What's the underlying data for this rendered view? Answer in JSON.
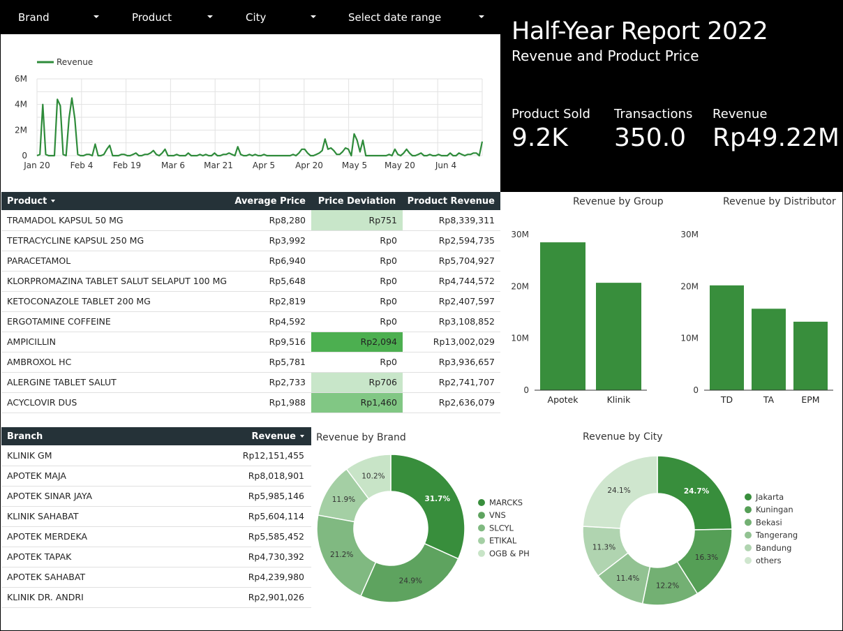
{
  "filters": [
    {
      "label": "Brand"
    },
    {
      "label": "Product"
    },
    {
      "label": "City"
    },
    {
      "label": "Select date range"
    }
  ],
  "header": {
    "title": "Half-Year Report 2022",
    "subtitle": "Revenue and Product Price",
    "kpis": [
      {
        "label": "Product Sold",
        "value": "9.2K"
      },
      {
        "label": "Transactions",
        "value": "350.0"
      },
      {
        "label": "Revenue",
        "value": "Rp49.22M"
      }
    ]
  },
  "colors": {
    "header_bg": "#000000",
    "table_header_bg": "#253238",
    "green_dark": "#388e3c",
    "green_line": "#2e8b3a",
    "heat_high": "#4caf50",
    "heat_mid": "#81c784",
    "heat_low": "#c8e6c9"
  },
  "product_table": {
    "columns": [
      "Product",
      "Average Price",
      "Price Deviation",
      "Product Revenue"
    ],
    "rows": [
      {
        "product": "TRAMADOL KAPSUL 50 MG",
        "avg_price": "Rp8,280",
        "deviation": "Rp751",
        "dev_value": 751,
        "revenue": "Rp8,339,311"
      },
      {
        "product": "TETRACYCLINE KAPSUL 250 MG",
        "avg_price": "Rp3,992",
        "deviation": "Rp0",
        "dev_value": 0,
        "revenue": "Rp2,594,735"
      },
      {
        "product": "PARACETAMOL",
        "avg_price": "Rp6,940",
        "deviation": "Rp0",
        "dev_value": 0,
        "revenue": "Rp5,704,927"
      },
      {
        "product": "KLORPROMAZINA TABLET SALUT SELAPUT 100 MG",
        "avg_price": "Rp5,648",
        "deviation": "Rp0",
        "dev_value": 0,
        "revenue": "Rp4,744,572"
      },
      {
        "product": "KETOCONAZOLE TABLET 200 MG",
        "avg_price": "Rp2,819",
        "deviation": "Rp0",
        "dev_value": 0,
        "revenue": "Rp2,407,597"
      },
      {
        "product": "ERGOTAMINE COFFEINE",
        "avg_price": "Rp4,592",
        "deviation": "Rp0",
        "dev_value": 0,
        "revenue": "Rp3,108,852"
      },
      {
        "product": "AMPICILLIN",
        "avg_price": "Rp9,516",
        "deviation": "Rp2,094",
        "dev_value": 2094,
        "revenue": "Rp13,002,029"
      },
      {
        "product": "AMBROXOL HC",
        "avg_price": "Rp5,781",
        "deviation": "Rp0",
        "dev_value": 0,
        "revenue": "Rp3,936,657"
      },
      {
        "product": "ALERGINE TABLET SALUT",
        "avg_price": "Rp2,733",
        "deviation": "Rp706",
        "dev_value": 706,
        "revenue": "Rp2,741,707"
      },
      {
        "product": "ACYCLOVIR DUS",
        "avg_price": "Rp1,988",
        "deviation": "Rp1,460",
        "dev_value": 1460,
        "revenue": "Rp2,636,079"
      }
    ]
  },
  "branch_table": {
    "columns": [
      "Branch",
      "Revenue"
    ],
    "rows": [
      {
        "branch": "KLINIK GM",
        "revenue": "Rp12,151,455"
      },
      {
        "branch": "APOTEK MAJA",
        "revenue": "Rp8,018,901"
      },
      {
        "branch": "APOTEK SINAR JAYA",
        "revenue": "Rp5,985,146"
      },
      {
        "branch": "KLINIK SAHABAT",
        "revenue": "Rp5,604,114"
      },
      {
        "branch": "APOTEK MERDEKA",
        "revenue": "Rp5,585,452"
      },
      {
        "branch": "APOTEK TAPAK",
        "revenue": "Rp4,730,392"
      },
      {
        "branch": "APOTEK SAHABAT",
        "revenue": "Rp4,239,980"
      },
      {
        "branch": "KLINIK DR. ANDRI",
        "revenue": "Rp2,901,026"
      }
    ]
  },
  "chart_data": [
    {
      "id": "revenue_timeseries",
      "type": "line",
      "title": "",
      "legend": {
        "entries": [
          "Revenue"
        ],
        "placement": "top-left"
      },
      "x_tick_labels": [
        "Jan 20",
        "Feb 4",
        "Feb 19",
        "Mar 6",
        "Mar 21",
        "Apr 5",
        "Apr 20",
        "May 5",
        "May 20",
        "Jun 4"
      ],
      "y_tick_labels": [
        "0",
        "2M",
        "4M",
        "6M"
      ],
      "ylim": [
        0,
        6000000
      ],
      "grid": true,
      "series": [
        {
          "name": "Revenue",
          "x_start": "Jan 20",
          "x_step_days": 1,
          "values": [
            0,
            0.1,
            4.0,
            0.1,
            0,
            0,
            0,
            4.4,
            3.9,
            0.1,
            0,
            2.9,
            4.5,
            2.9,
            0.1,
            0,
            0,
            0.1,
            0.1,
            0,
            0.9,
            0,
            0,
            0.1,
            0.5,
            0.8,
            0,
            0,
            0,
            0.1,
            0.1,
            0,
            0,
            0.1,
            0.2,
            0,
            0,
            0.1,
            0.1,
            0.2,
            0.4,
            0.1,
            0,
            0.2,
            0.5,
            0,
            0,
            0,
            0.1,
            0,
            0,
            0,
            0.2,
            0,
            0,
            0,
            0.1,
            0,
            0.1,
            0,
            0,
            0.2,
            0,
            0,
            0.1,
            0.1,
            0.2,
            0.1,
            0,
            0.7,
            0.1,
            0,
            0,
            0.1,
            0,
            0.1,
            0,
            0,
            0.1,
            0,
            0,
            0,
            0,
            0,
            0,
            0,
            0,
            0,
            0.1,
            0,
            0.2,
            0.5,
            0.5,
            0.2,
            0,
            0,
            0.1,
            0.2,
            0.4,
            1.3,
            0.5,
            0.6,
            0.4,
            0.1,
            0.1,
            0.3,
            0.6,
            0.5,
            0,
            1.7,
            1.2,
            0.3,
            1.2,
            0,
            0,
            0,
            0,
            0,
            0,
            0,
            0,
            0.1,
            0,
            0.5,
            0.1,
            0,
            0.2,
            0.5,
            0.2,
            0,
            0,
            0.1,
            0.2,
            0,
            0,
            0.1,
            0,
            0,
            0.1,
            0,
            0,
            0,
            0.2,
            0,
            0,
            0.2,
            0.1,
            0,
            0.1,
            0.1,
            0.2,
            0.2,
            0,
            1.1
          ]
        }
      ]
    },
    {
      "id": "revenue_by_group",
      "type": "bar",
      "title": "Revenue by Group",
      "categories": [
        "Apotek",
        "Klinik"
      ],
      "values": [
        28500000,
        20700000
      ],
      "y_tick_labels": [
        "0",
        "10M",
        "20M",
        "30M"
      ],
      "ylim": [
        0,
        30000000
      ],
      "grid": false
    },
    {
      "id": "revenue_by_distributor",
      "type": "bar",
      "title": "Revenue by Distributor",
      "categories": [
        "TD",
        "TA",
        "EPM"
      ],
      "values": [
        20200000,
        15700000,
        13200000
      ],
      "y_tick_labels": [
        "0",
        "10M",
        "20M",
        "30M"
      ],
      "ylim": [
        0,
        30000000
      ],
      "grid": false
    },
    {
      "id": "revenue_by_brand",
      "type": "pie",
      "title": "Revenue by Brand",
      "donut": true,
      "legend": {
        "placement": "right"
      },
      "slices": [
        {
          "label": "MARCKS",
          "value": 31.7,
          "display": "31.7%",
          "color": "#388e3c"
        },
        {
          "label": "VNS",
          "value": 24.9,
          "display": "24.9%",
          "color": "#5ea35f"
        },
        {
          "label": "SLCYL",
          "value": 21.2,
          "display": "21.2%",
          "color": "#80b981"
        },
        {
          "label": "ETIKAL",
          "value": 11.9,
          "display": "11.9%",
          "color": "#a4cfa4"
        },
        {
          "label": "OGB & PH",
          "value": 10.2,
          "display": "10.2%",
          "color": "#c8e4c7"
        }
      ]
    },
    {
      "id": "revenue_by_city",
      "type": "pie",
      "title": "Revenue by City",
      "donut": true,
      "legend": {
        "placement": "right"
      },
      "slices": [
        {
          "label": "Jakarta",
          "value": 24.7,
          "display": "24.7%",
          "color": "#388e3c"
        },
        {
          "label": "Kuningan",
          "value": 16.3,
          "display": "16.3%",
          "color": "#559f56"
        },
        {
          "label": "Bekasi",
          "value": 12.2,
          "display": "12.2%",
          "color": "#73b073"
        },
        {
          "label": "Tangerang",
          "value": 11.4,
          "display": "11.4%",
          "color": "#92c292"
        },
        {
          "label": "Bandung",
          "value": 11.3,
          "display": "11.3%",
          "color": "#b0d4b0"
        },
        {
          "label": "others",
          "value": 24.1,
          "display": "24.1%",
          "color": "#cfe6ce"
        }
      ]
    }
  ]
}
